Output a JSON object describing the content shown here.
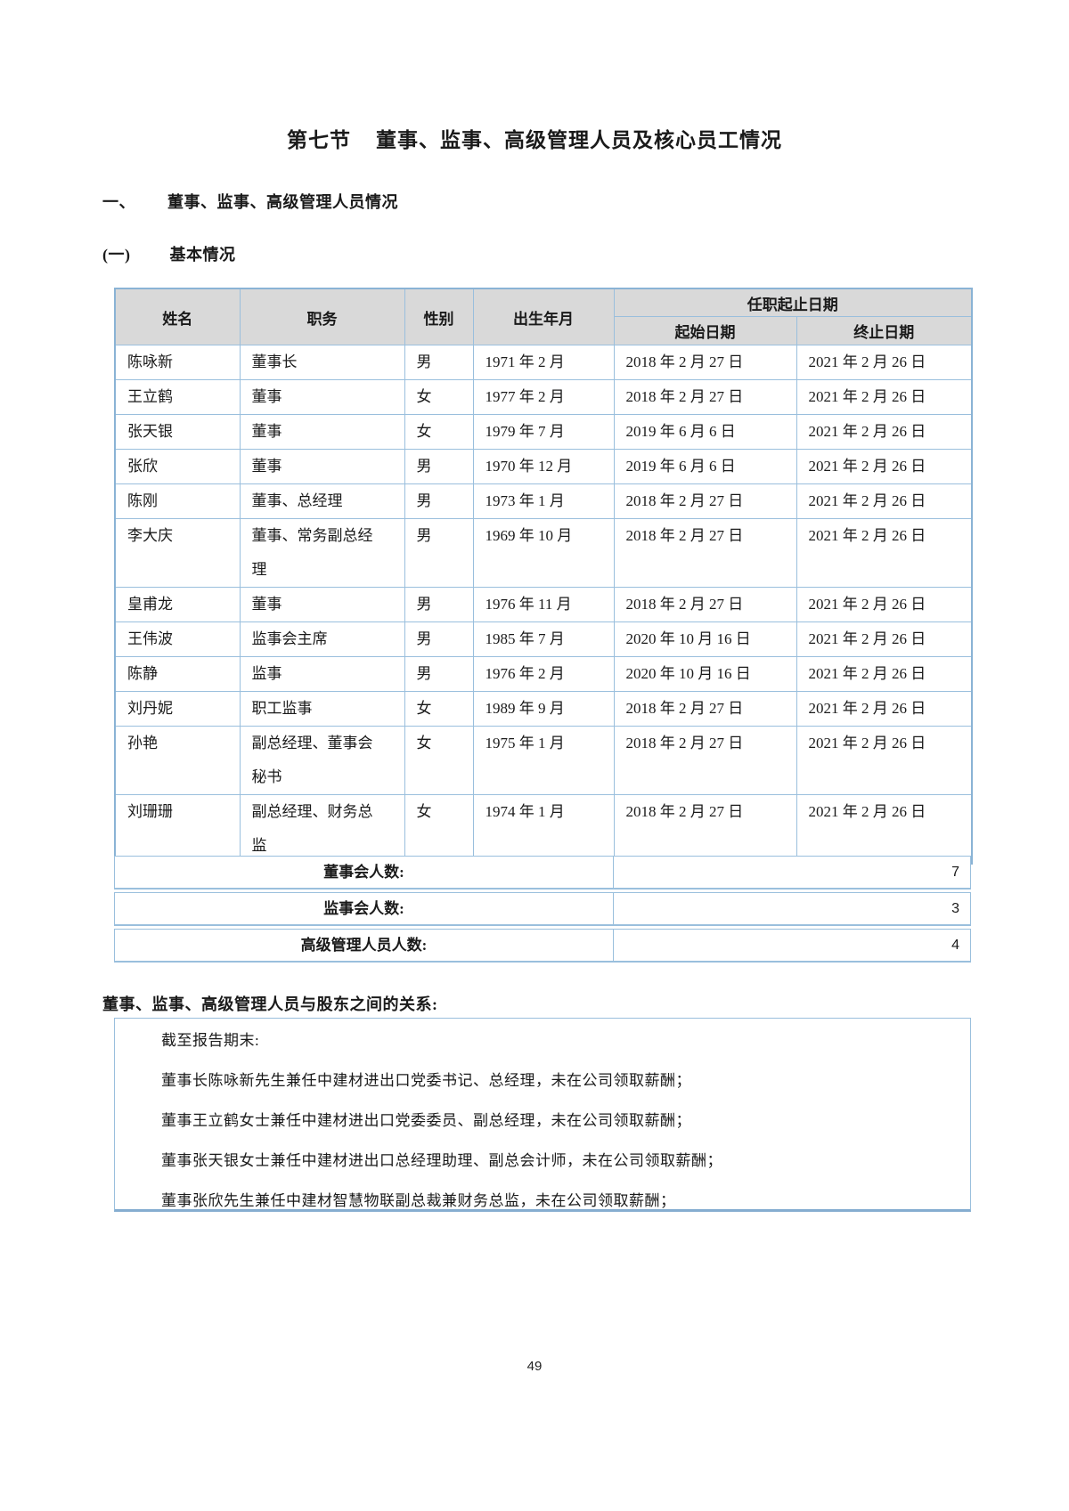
{
  "page": {
    "title_prefix": "第七节",
    "title_text": "董事、监事、高级管理人员及核心员工情况",
    "section1_num": "一、",
    "section1_text": "董事、监事、高级管理人员情况",
    "section2_num": "(一)",
    "section2_text": "基本情况",
    "page_number": "49"
  },
  "colors": {
    "table_border": "#9abfdd",
    "table_outer_border": "#8ab3d5",
    "header_bg": "#d9d9d9",
    "text": "#1a1a1a"
  },
  "table": {
    "headers": {
      "name": "姓名",
      "position": "职务",
      "gender": "性别",
      "birth": "出生年月",
      "term": "任职起止日期",
      "start": "起始日期",
      "end": "终止日期"
    },
    "rows": [
      {
        "name": "陈咏新",
        "position": "董事长",
        "gender": "男",
        "birth": "1971 年 2 月",
        "start": "2018 年 2 月 27 日",
        "end": "2021 年 2 月 26 日"
      },
      {
        "name": "王立鹤",
        "position": "董事",
        "gender": "女",
        "birth": "1977 年 2 月",
        "start": "2018 年 2 月 27 日",
        "end": "2021 年 2 月 26 日"
      },
      {
        "name": "张天银",
        "position": "董事",
        "gender": "女",
        "birth": "1979 年 7 月",
        "start": "2019 年 6 月 6 日",
        "end": "2021 年 2 月 26 日"
      },
      {
        "name": "张欣",
        "position": "董事",
        "gender": "男",
        "birth": "1970 年 12 月",
        "start": "2019 年 6 月 6 日",
        "end": "2021 年 2 月 26 日"
      },
      {
        "name": "陈刚",
        "position": "董事、总经理",
        "gender": "男",
        "birth": "1973 年 1 月",
        "start": "2018 年 2 月 27 日",
        "end": "2021 年 2 月 26 日"
      },
      {
        "name": "李大庆",
        "position": "董事、常务副总经理",
        "gender": "男",
        "birth": "1969 年 10 月",
        "start": "2018 年 2 月 27 日",
        "end": "2021 年 2 月 26 日"
      },
      {
        "name": "皇甫龙",
        "position": "董事",
        "gender": "男",
        "birth": "1976 年 11 月",
        "start": "2018 年 2 月 27 日",
        "end": "2021 年 2 月 26 日"
      },
      {
        "name": "王伟波",
        "position": "监事会主席",
        "gender": "男",
        "birth": "1985 年 7 月",
        "start": "2020 年 10 月 16 日",
        "end": "2021 年 2 月 26 日"
      },
      {
        "name": "陈静",
        "position": "监事",
        "gender": "男",
        "birth": "1976 年 2 月",
        "start": "2020 年 10 月 16 日",
        "end": "2021 年 2 月 26 日"
      },
      {
        "name": "刘丹妮",
        "position": "职工监事",
        "gender": "女",
        "birth": "1989 年 9 月",
        "start": "2018 年 2 月 27 日",
        "end": "2021 年 2 月 26 日"
      },
      {
        "name": "孙艳",
        "position": "副总经理、董事会秘书",
        "gender": "女",
        "birth": "1975 年 1 月",
        "start": "2018 年 2 月 27 日",
        "end": "2021 年 2 月 26 日"
      },
      {
        "name": "刘珊珊",
        "position": "副总经理、财务总监",
        "gender": "女",
        "birth": "1974 年 1 月",
        "start": "2018 年 2 月 27 日",
        "end": "2021 年 2 月 26 日"
      }
    ],
    "summary": [
      {
        "label": "董事会人数:",
        "value": "7"
      },
      {
        "label": "监事会人数:",
        "value": "3"
      },
      {
        "label": "高级管理人员人数:",
        "value": "4"
      }
    ]
  },
  "relations": {
    "heading": "董事、监事、高级管理人员与股东之间的关系:",
    "lines": [
      "截至报告期末:",
      "董事长陈咏新先生兼任中建材进出口党委书记、总经理，未在公司领取薪酬；",
      "董事王立鹤女士兼任中建材进出口党委委员、副总经理，未在公司领取薪酬；",
      "董事张天银女士兼任中建材进出口总经理助理、副总会计师，未在公司领取薪酬；",
      "董事张欣先生兼任中建材智慧物联副总裁兼财务总监，未在公司领取薪酬；"
    ]
  }
}
